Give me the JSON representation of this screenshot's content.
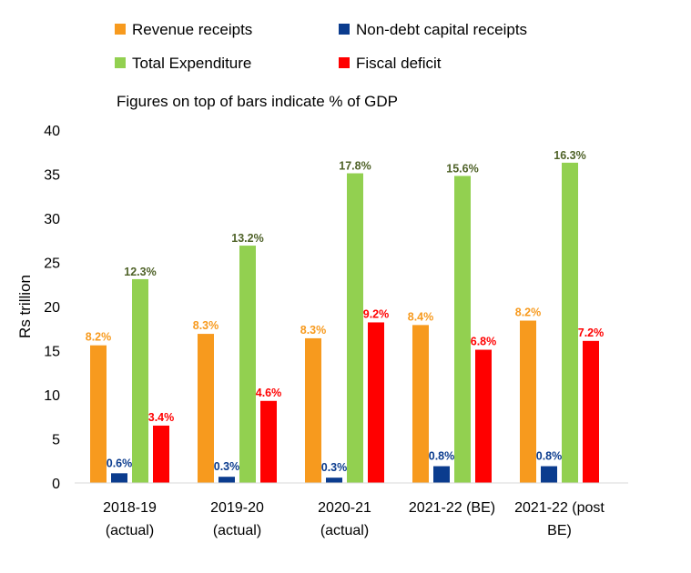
{
  "chart_data": {
    "type": "bar",
    "note": "Figures on top of bars indicate % of GDP",
    "ylabel": "Rs trillion",
    "ylim": [
      0,
      40
    ],
    "yticks": [
      0,
      5,
      10,
      15,
      20,
      25,
      30,
      35,
      40
    ],
    "grid": false,
    "legend_position": "top",
    "categories": [
      [
        "2018-19",
        "(actual)"
      ],
      [
        "2019-20",
        "(actual)"
      ],
      [
        "2020-21",
        "(actual)"
      ],
      [
        "2021-22 (BE)"
      ],
      [
        "2021-22 (post",
        "BE)"
      ]
    ],
    "series": [
      {
        "name": "Revenue receipts",
        "color": "#F79A1E",
        "values": [
          15.6,
          16.9,
          16.4,
          17.9,
          18.4
        ],
        "labels": [
          "8.2%",
          "8.3%",
          "8.3%",
          "8.4%",
          "8.2%"
        ]
      },
      {
        "name": "Non-debt capital receipts",
        "color": "#0B3C8E",
        "values": [
          1.1,
          0.7,
          0.6,
          1.9,
          1.9
        ],
        "labels": [
          "0.6%",
          "0.3%",
          "0.3%",
          "0.8%",
          "0.8%"
        ]
      },
      {
        "name": "Total Expenditure",
        "color": "#92D050",
        "labels_color": "#4F6228",
        "values": [
          23.1,
          26.9,
          35.1,
          34.8,
          36.3
        ],
        "labels": [
          "12.3%",
          "13.2%",
          "17.8%",
          "15.6%",
          "16.3%"
        ]
      },
      {
        "name": "Fiscal deficit",
        "color": "#FF0000",
        "values": [
          6.5,
          9.3,
          18.2,
          15.1,
          16.1
        ],
        "labels": [
          "3.4%",
          "4.6%",
          "9.2%",
          "6.8%",
          "7.2%"
        ]
      }
    ]
  }
}
